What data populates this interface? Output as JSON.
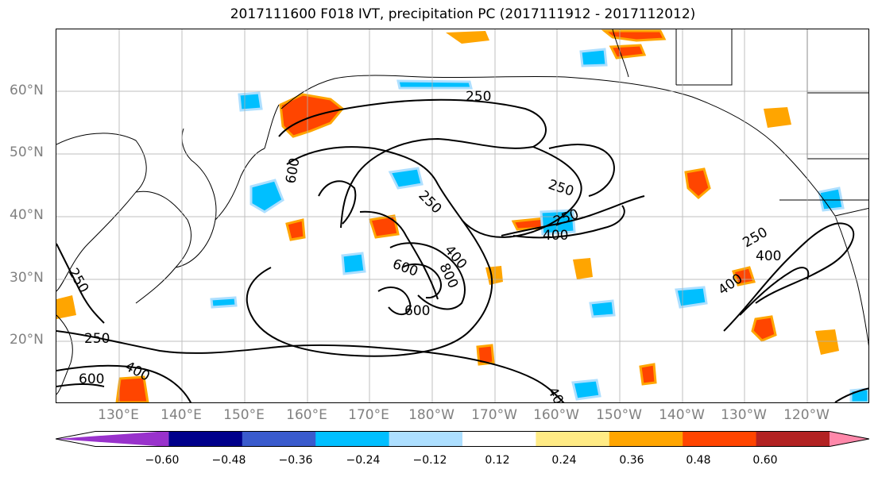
{
  "title": "2017111600 F018 IVT, precipitation PC (2017111912 - 2017112012)",
  "lat_labels": [
    "60°N",
    "50°N",
    "40°N",
    "30°N",
    "20°N"
  ],
  "lon_labels": [
    "130°E",
    "140°E",
    "150°E",
    "160°E",
    "170°E",
    "180°W",
    "170°W",
    "160°W",
    "150°W",
    "140°W",
    "130°W",
    "120°W"
  ],
  "colorbar": {
    "ticks": [
      "−0.60",
      "−0.48",
      "−0.36",
      "−0.24",
      "−0.12",
      "0.12",
      "0.24",
      "0.36",
      "0.48",
      "0.60"
    ],
    "colors": [
      "#9932CC",
      "#00008B",
      "#3A5BCD",
      "#00BFFF",
      "#ADDFFF",
      "#FFFFFF",
      "#FFEB85",
      "#FFA500",
      "#FF4500",
      "#B22222",
      "#FF88AA"
    ]
  },
  "contour_labels": [
    "250",
    "250",
    "250",
    "250",
    "250",
    "250",
    "250",
    "400",
    "400",
    "400",
    "400",
    "400",
    "400",
    "600",
    "600",
    "600",
    "600",
    "800"
  ]
}
